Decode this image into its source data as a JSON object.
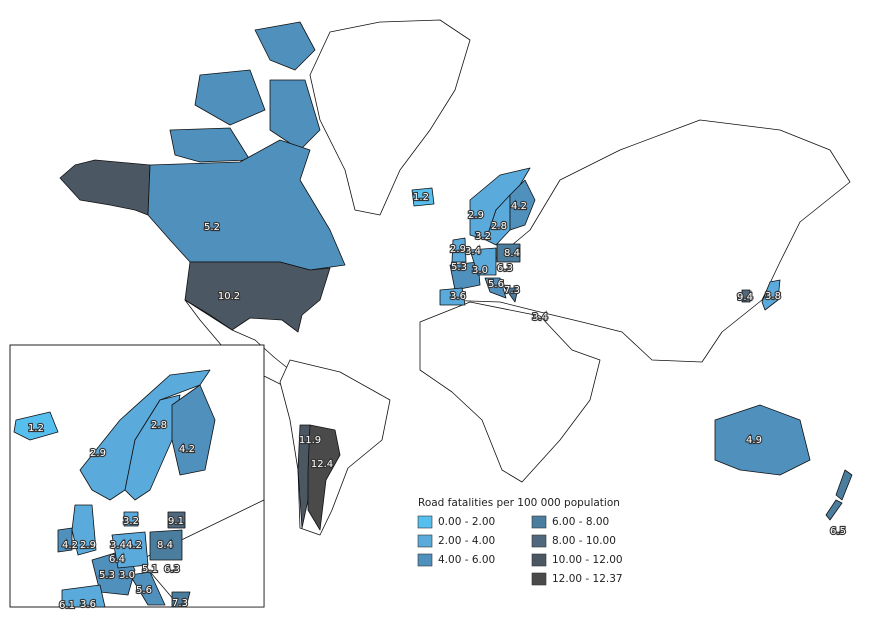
{
  "map": {
    "legend": {
      "title": "Road fatalities per 100 000 population",
      "items": [
        {
          "label": "0.00 - 2.00",
          "color": "#57bfee"
        },
        {
          "label": "2.00 - 4.00",
          "color": "#5aaadc"
        },
        {
          "label": "4.00 - 6.00",
          "color": "#5090bd"
        },
        {
          "label": "6.00 - 8.00",
          "color": "#4b7d9f"
        },
        {
          "label": "8.00 - 10.00",
          "color": "#4f687d"
        },
        {
          "label": "10.00 - 12.00",
          "color": "#4c5764"
        },
        {
          "label": "12.00 - 12.37",
          "color": "#4a4a4a"
        }
      ]
    },
    "main_labels": [
      "5.2",
      "10.2",
      "1.2",
      "2.9",
      "2.8",
      "4.2",
      "3.2",
      "2.9",
      "3.4",
      "8.4",
      "5.3",
      "3.0",
      "6.3",
      "5.6",
      "7.3",
      "3.6",
      "3.4",
      "9.4",
      "3.8",
      "11.9",
      "12.4",
      "4.9",
      "6.5"
    ],
    "inset_labels": [
      "1.2",
      "2.8",
      "2.9",
      "4.2",
      "3.2",
      "9.1",
      "4.2",
      "2.9",
      "3.4",
      "4.2",
      "8.4",
      "6.4",
      "5.3",
      "3.0",
      "5.1",
      "6.3",
      "5.6",
      "7.3",
      "6.1",
      "3.6"
    ]
  }
}
